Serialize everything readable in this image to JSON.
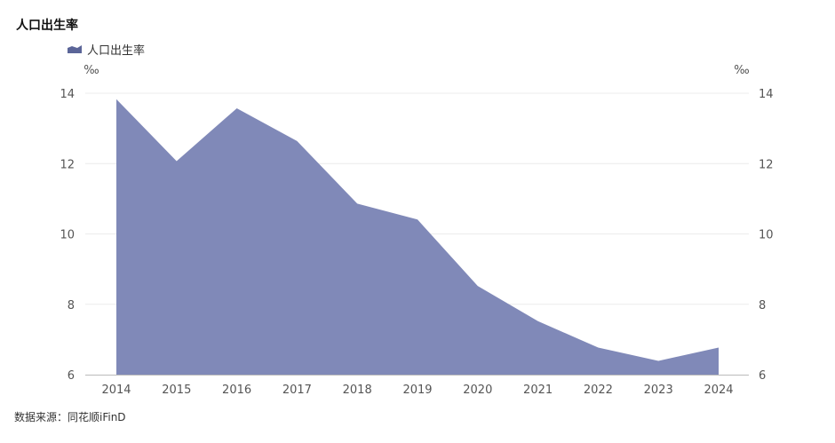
{
  "chart_data": {
    "type": "area",
    "title": "人口出生率",
    "x": [
      "2014",
      "2015",
      "2016",
      "2017",
      "2018",
      "2019",
      "2020",
      "2021",
      "2022",
      "2023",
      "2024"
    ],
    "series": [
      {
        "name": "人口出生率",
        "values": [
          13.83,
          12.07,
          13.57,
          12.64,
          10.86,
          10.41,
          8.52,
          7.52,
          6.77,
          6.39,
          6.77
        ]
      }
    ],
    "ylabel_left": "‰",
    "ylabel_right": "‰",
    "ylim": [
      6,
      14
    ],
    "yticks": [
      6,
      8,
      10,
      12,
      14
    ],
    "grid": true,
    "legend_position": "top-left",
    "colors": {
      "area": "#8089b8",
      "legend": "#5b6598"
    }
  },
  "footer": {
    "source": "数据来源：同花顺iFinD"
  }
}
